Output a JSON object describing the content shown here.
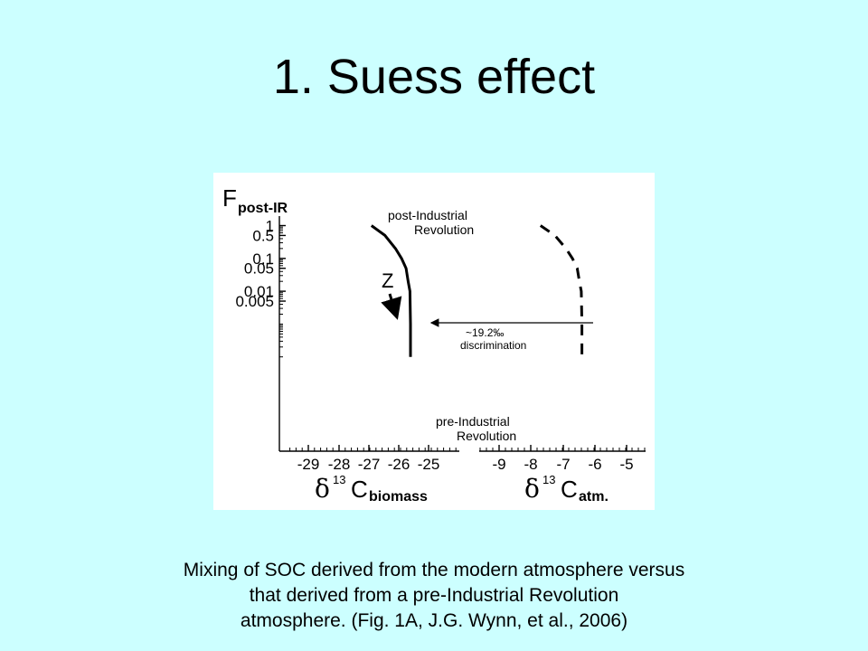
{
  "slide": {
    "title": "1.  Suess effect",
    "caption_lines": [
      "Mixing of SOC derived from the modern atmosphere versus",
      "that derived from a pre-Industrial Revolution",
      "atmosphere. (Fig. 1A, J.G. Wynn, et al., 2006)"
    ]
  },
  "chart_data": {
    "type": "line",
    "y_axis": {
      "label_main": "F",
      "label_sub": "post-IR",
      "scale": "log",
      "tick_labels": [
        "1",
        "0.5",
        "0.1",
        "0.05",
        "0.01",
        "0.005"
      ],
      "tick_values": [
        1,
        0.5,
        0.1,
        0.05,
        0.01,
        0.005
      ]
    },
    "x_axis_left": {
      "label_delta": "δ",
      "label_sup": "13",
      "label_main": "C",
      "label_sub": "biomass",
      "tick_labels": [
        "-29",
        "-28",
        "-27",
        "-26",
        "-25"
      ],
      "range": [
        -29.6,
        -25
      ]
    },
    "x_axis_right": {
      "label_delta": "δ",
      "label_sup": "13",
      "label_main": "C",
      "label_sub": "atm.",
      "tick_labels": [
        "-9",
        "-8",
        "-7",
        "-6",
        "-5"
      ],
      "range": [
        -9.4,
        -5
      ]
    },
    "series": [
      {
        "axis": "left",
        "style": "solid",
        "points": [
          [
            -26.9,
            1
          ],
          [
            -26.45,
            0.5
          ],
          [
            -26.1,
            0.2
          ],
          [
            -25.9,
            0.1
          ],
          [
            -25.75,
            0.05
          ],
          [
            -25.68,
            0.02
          ],
          [
            -25.62,
            0.01
          ],
          [
            -25.6,
            0.001
          ],
          [
            -25.6,
            0.0001
          ]
        ]
      },
      {
        "axis": "right",
        "style": "dashed",
        "points": [
          [
            -7.7,
            1
          ],
          [
            -7.25,
            0.5
          ],
          [
            -6.9,
            0.2
          ],
          [
            -6.7,
            0.1
          ],
          [
            -6.55,
            0.05
          ],
          [
            -6.48,
            0.02
          ],
          [
            -6.42,
            0.01
          ],
          [
            -6.4,
            0.001
          ],
          [
            -6.4,
            0.0001
          ]
        ]
      }
    ],
    "annotations": {
      "post_ir_line1": "post-Industrial",
      "post_ir_line2": "Revolution",
      "pre_ir_line1": "pre-Industrial",
      "pre_ir_line2": "Revolution",
      "z_label": "Z",
      "disc_value": "~19.2‰",
      "disc_label": "discrimination"
    }
  }
}
